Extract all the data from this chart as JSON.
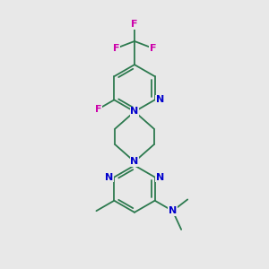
{
  "bg_color": "#e8e8e8",
  "bond_color": "#2d7a4f",
  "N_color": "#0000cc",
  "F_color": "#cc00aa",
  "line_width": 1.3,
  "font_size": 8.0,
  "fig_size": [
    3.0,
    3.0
  ],
  "dpi": 100,
  "xlim": [
    0.15,
    0.85
  ],
  "ylim": [
    0.04,
    0.98
  ]
}
